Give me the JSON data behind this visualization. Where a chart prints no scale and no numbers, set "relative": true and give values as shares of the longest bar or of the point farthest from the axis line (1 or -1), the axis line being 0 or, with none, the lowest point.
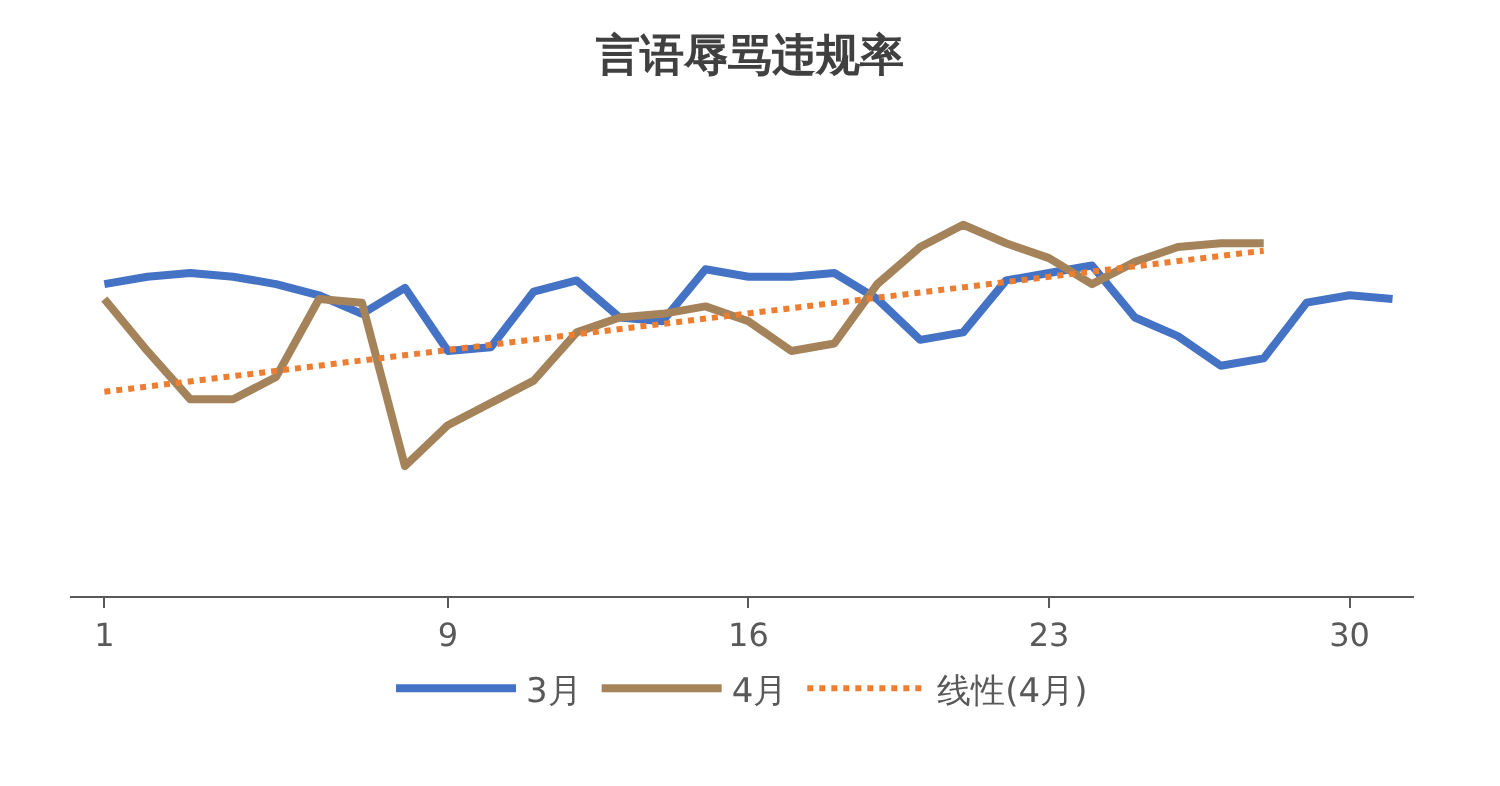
{
  "chart_data": {
    "type": "line",
    "title": "言语辱骂违规率",
    "relative": true,
    "x": [
      1,
      2,
      3,
      4,
      5,
      6,
      7,
      8,
      9,
      10,
      11,
      12,
      13,
      14,
      15,
      16,
      17,
      18,
      19,
      20,
      21,
      22,
      23,
      24,
      25,
      26,
      27,
      28,
      29,
      30,
      31
    ],
    "xlim": [
      0.2,
      31.5
    ],
    "xticks": [
      1,
      9,
      16,
      23,
      30
    ],
    "legend": "bottom",
    "marker": "none",
    "series": [
      {
        "name": "3月",
        "color": "#4472c4",
        "line_style": "solid",
        "values": [
          0.84,
          0.86,
          0.87,
          0.86,
          0.84,
          0.81,
          0.76,
          0.83,
          0.66,
          0.67,
          0.82,
          0.85,
          0.75,
          0.74,
          0.88,
          0.86,
          0.86,
          0.87,
          0.8,
          0.69,
          0.71,
          0.85,
          0.87,
          0.89,
          0.75,
          0.7,
          0.62,
          0.64,
          0.79,
          0.81,
          0.8
        ]
      },
      {
        "name": "4月",
        "color": "#a5835a",
        "line_style": "solid",
        "x": [
          1,
          2,
          3,
          4,
          5,
          6,
          7,
          8,
          9,
          10,
          11,
          12,
          13,
          14,
          15,
          16,
          17,
          18,
          19,
          20,
          21,
          22,
          23,
          24,
          25,
          26,
          27,
          28
        ],
        "values": [
          0.8,
          0.66,
          0.53,
          0.53,
          0.59,
          0.8,
          0.79,
          0.35,
          0.46,
          0.52,
          0.58,
          0.71,
          0.75,
          0.76,
          0.78,
          0.74,
          0.66,
          0.68,
          0.84,
          0.94,
          1.0,
          0.95,
          0.91,
          0.84,
          0.9,
          0.94,
          0.95,
          0.95
        ]
      },
      {
        "name": "线性(4月)",
        "color": "#ed7d31",
        "line_style": "dotted",
        "x": [
          1,
          28
        ],
        "values": [
          0.55,
          0.93
        ]
      }
    ]
  }
}
